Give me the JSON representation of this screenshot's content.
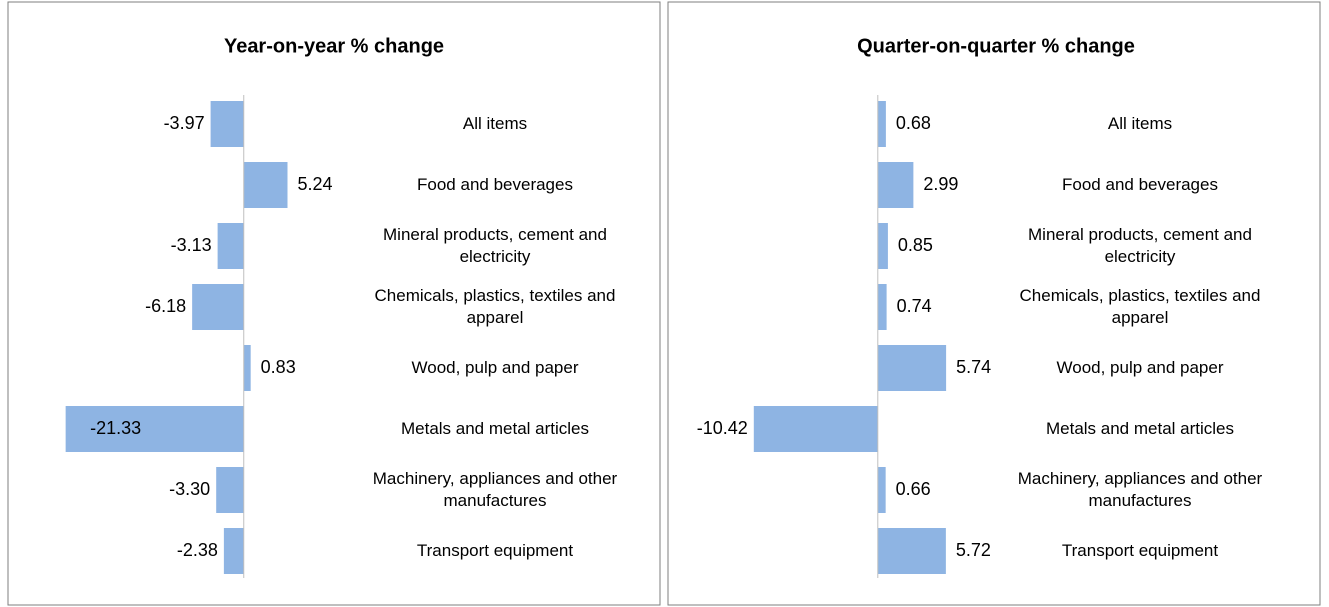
{
  "chart_data": [
    {
      "type": "bar",
      "orientation": "horizontal",
      "title": "Year-on-year % change",
      "categories": [
        "All items",
        "Food and beverages",
        "Mineral products, cement and electricity",
        "Chemicals, plastics, textiles and apparel",
        "Wood, pulp and paper",
        "Metals and metal articles",
        "Machinery, appliances and other manufactures",
        "Transport equipment"
      ],
      "values": [
        -3.97,
        5.24,
        -3.13,
        -6.18,
        0.83,
        -21.33,
        -3.3,
        -2.38
      ],
      "value_labels": [
        "-3.97",
        "5.24",
        "-3.13",
        "-6.18",
        "0.83",
        "-21.33",
        "-3.30",
        "-2.38"
      ],
      "color": "#8eb4e3",
      "xlim": [
        -25,
        15
      ]
    },
    {
      "type": "bar",
      "orientation": "horizontal",
      "title": "Quarter-on-quarter % change",
      "categories": [
        "All items",
        "Food and beverages",
        "Mineral products, cement and electricity",
        "Chemicals, plastics, textiles and apparel",
        "Wood, pulp and paper",
        "Metals and metal articles",
        "Machinery, appliances and other manufactures",
        "Transport equipment"
      ],
      "values": [
        0.68,
        2.99,
        0.85,
        0.74,
        5.74,
        -10.42,
        0.66,
        5.72
      ],
      "value_labels": [
        "0.68",
        "2.99",
        "0.85",
        "0.74",
        "5.74",
        "-10.42",
        "0.66",
        "5.72"
      ],
      "color": "#8eb4e3",
      "xlim": [
        -12,
        8
      ]
    }
  ]
}
